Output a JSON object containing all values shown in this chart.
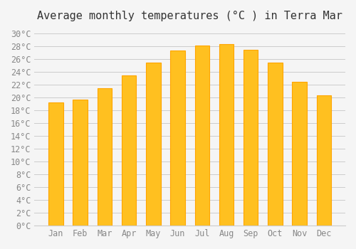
{
  "title": "Average monthly temperatures (°C ) in Terra Mar",
  "months": [
    "Jan",
    "Feb",
    "Mar",
    "Apr",
    "May",
    "Jun",
    "Jul",
    "Aug",
    "Sep",
    "Oct",
    "Nov",
    "Dec"
  ],
  "values": [
    19.2,
    19.7,
    21.5,
    23.5,
    25.5,
    27.3,
    28.1,
    28.3,
    27.5,
    25.5,
    22.5,
    20.3
  ],
  "bar_color": "#FFC020",
  "bar_edge_color": "#FFA500",
  "background_color": "#f5f5f5",
  "grid_color": "#cccccc",
  "text_color": "#888888",
  "ylim": [
    0,
    31
  ],
  "yticks": [
    0,
    2,
    4,
    6,
    8,
    10,
    12,
    14,
    16,
    18,
    20,
    22,
    24,
    26,
    28,
    30
  ],
  "title_fontsize": 11,
  "tick_fontsize": 8.5,
  "font_family": "monospace"
}
